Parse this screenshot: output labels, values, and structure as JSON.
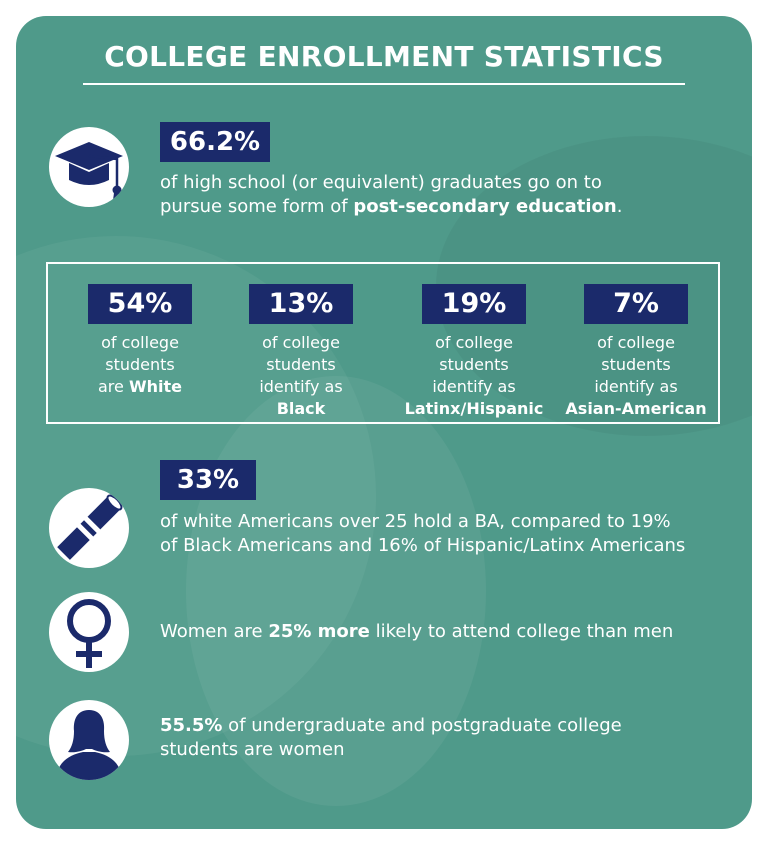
{
  "title": "COLLEGE ENROLLMENT STATISTICS",
  "colors": {
    "card": "#4f9a8a",
    "navy": "#1b2a6b",
    "text": "#ffffff"
  },
  "top_stat": {
    "icon": "graduation-cap-icon",
    "value": "66.2%",
    "line1": "of high school (or equivalent) graduates go on to",
    "line2_pre": "pursue some form of ",
    "line2_bold": "post-secondary education",
    "line2_post": "."
  },
  "race_stats": [
    {
      "value": "54%",
      "lines": [
        "of college",
        "students"
      ],
      "bold_prefix": "are ",
      "bold": "White"
    },
    {
      "value": "13%",
      "lines": [
        "of college",
        "students",
        "identify as"
      ],
      "bold_prefix": "",
      "bold": "Black"
    },
    {
      "value": "19%",
      "lines": [
        "of college",
        "students",
        "identify as"
      ],
      "bold_prefix": "",
      "bold": "Latinx/Hispanic"
    },
    {
      "value": "7%",
      "lines": [
        "of college",
        "students",
        "identify as"
      ],
      "bold_prefix": "",
      "bold": "Asian-American"
    }
  ],
  "ba_stat": {
    "icon": "diploma-icon",
    "value": "33%",
    "line1": "of white Americans over 25 hold a BA, compared to 19%",
    "line2": "of Black Americans and 16% of Hispanic/Latinx Americans"
  },
  "women_attend": {
    "icon": "female-symbol-icon",
    "pre": "Women are ",
    "bold": "25% more",
    "post": " likely to attend college than men"
  },
  "women_share": {
    "icon": "woman-silhouette-icon",
    "bold": "55.5%",
    "line1_post": " of undergraduate and postgraduate college",
    "line2": "students are women"
  }
}
